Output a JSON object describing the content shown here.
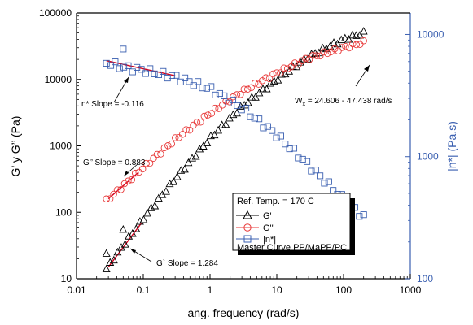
{
  "chart_data": {
    "type": "scatter",
    "xlabel": "ang. frequency (rad/s)",
    "ylabel": "G’ y G’’ (Pa)",
    "y2label": "|n*| (Pa.s)",
    "xscale": "log",
    "yscale": "log",
    "y2scale": "log",
    "xlim": [
      0.01,
      1000
    ],
    "ylim": [
      10,
      100000
    ],
    "y2lim": [
      100,
      15000
    ],
    "x_ticks": [
      "0.01",
      "0.1",
      "1",
      "10",
      "100",
      "1000"
    ],
    "y_ticks": [
      "10",
      "100",
      "1000",
      "10000",
      "100000"
    ],
    "y2_ticks": [
      "100",
      "1000",
      "10000"
    ],
    "legend": {
      "position": "lower-right",
      "title": "Ref. Temp. = 170 C",
      "footer": "Master Curve PP/MaPP/PC",
      "entries": [
        "G'",
        "G''",
        "|n*|"
      ]
    },
    "annotations": [
      {
        "text": "n* Slope = -0.116"
      },
      {
        "text": "G’’ Slope = 0.883"
      },
      {
        "text": "G` Slope = 1.284"
      },
      {
        "text_main": "W",
        "text_sub": "x",
        "text_rest": " = 24.606 - 47.438 rad/s"
      }
    ],
    "series": [
      {
        "name": "G'",
        "marker": "triangle",
        "color": "#000000",
        "axis": "left",
        "x_start": 0.028,
        "x_end": 200,
        "points": 70,
        "y_anchor_x": [
          0.028,
          0.05,
          0.1,
          0.3,
          1,
          3,
          10,
          30,
          100,
          200
        ],
        "y_anchor_y": [
          14,
          32,
          80,
          320,
          1300,
          3900,
          10000,
          22000,
          40000,
          50000
        ]
      },
      {
        "name": "G''",
        "marker": "circle",
        "color": "#e83a3a",
        "axis": "left",
        "x_start": 0.028,
        "x_end": 200,
        "points": 72,
        "y_anchor_x": [
          0.028,
          0.05,
          0.1,
          0.3,
          1,
          3,
          10,
          30,
          100,
          200
        ],
        "y_anchor_y": [
          150,
          250,
          470,
          1250,
          3100,
          6500,
          12500,
          21000,
          30000,
          36000
        ]
      },
      {
        "name": "|n*|",
        "marker": "square",
        "color": "#3a5fb0",
        "axis": "right",
        "x_start": 0.028,
        "x_end": 200,
        "points": 60,
        "y_anchor_x": [
          0.028,
          0.05,
          0.1,
          0.3,
          1,
          3,
          10,
          30,
          100,
          200
        ],
        "y_anchor_y": [
          5900,
          5400,
          5100,
          4500,
          3600,
          2500,
          1500,
          850,
          450,
          320
        ]
      }
    ],
    "fits": [
      {
        "label": "n* Slope = -0.116",
        "axis": "right",
        "x": [
          0.028,
          0.3
        ],
        "y": [
          6100,
          4600
        ]
      },
      {
        "label": "G’’ Slope = 0.883",
        "axis": "left",
        "x": [
          0.03,
          0.085
        ],
        "y": [
          160,
          400
        ]
      },
      {
        "label": "G` Slope = 1.284",
        "axis": "left",
        "x": [
          0.03,
          0.095
        ],
        "y": [
          15,
          70
        ]
      }
    ],
    "colors": {
      "axis_right": "#3a5fb0",
      "fit_line": "#d4001c"
    }
  }
}
